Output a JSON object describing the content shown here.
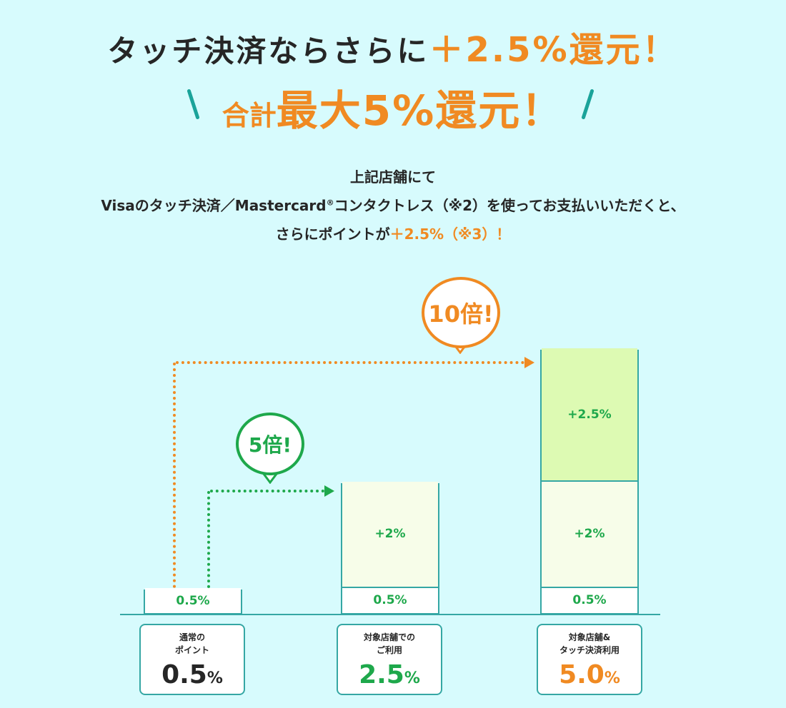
{
  "headline": {
    "line1_prefix": "タッチ決済ならさらに",
    "line1_highlight": "＋2.5%還元！",
    "line2_small": "合計",
    "line2_big": "最大5%還元！"
  },
  "description": {
    "line1": "上記店舗にて",
    "line2_a": "Visaのタッチ決済／Mastercard",
    "line2_reg": "®",
    "line2_b": "コンタクトレス（※2）を使ってお支払いいただくと、",
    "line3_a": "さらにポイントが",
    "line3_highlight": "＋2.5%（※3）！"
  },
  "callouts": {
    "five_times": "5倍!",
    "ten_times": "10倍!"
  },
  "colors": {
    "orange": "#f08a22",
    "green": "#1ea84b",
    "teal": "#35a7a4",
    "background": "#d7fbfd"
  },
  "chart_data": {
    "type": "bar",
    "stacked": true,
    "categories": [
      "通常のポイント",
      "対象店舗でのご利用",
      "対象店舗&タッチ決済利用"
    ],
    "ylim": [
      0,
      5
    ],
    "series": [
      {
        "values": [
          0.5,
          0.5,
          0.5
        ],
        "labels": [
          "0.5%",
          "0.5%",
          "0.5%"
        ]
      },
      {
        "values": [
          0,
          2,
          2
        ],
        "labels": [
          "",
          "+2%",
          "+2%"
        ]
      },
      {
        "values": [
          0,
          0,
          2.5
        ],
        "labels": [
          "",
          "",
          "+2.5%"
        ]
      }
    ],
    "cards": [
      {
        "caption": "通常の\nポイント",
        "number": "0.5",
        "unit": "%"
      },
      {
        "caption": "対象店舗での\nご利用",
        "number": "2.5",
        "unit": "%"
      },
      {
        "caption": "対象店舗&\nタッチ決済利用",
        "number": "5.0",
        "unit": "%"
      }
    ]
  }
}
